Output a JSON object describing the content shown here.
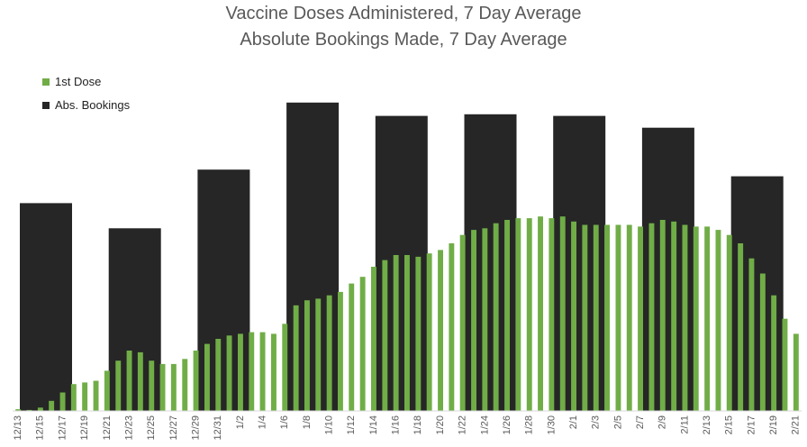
{
  "chart_data": {
    "type": "bar",
    "title": "Vaccine Doses Administered, 7 Day Average",
    "subtitle": "Absolute Bookings Made, 7 Day Average",
    "x_dates": [
      "12/13",
      "12/14",
      "12/15",
      "12/16",
      "12/17",
      "12/18",
      "12/19",
      "12/20",
      "12/21",
      "12/22",
      "12/23",
      "12/24",
      "12/25",
      "12/26",
      "12/27",
      "12/28",
      "12/29",
      "12/30",
      "12/31",
      "1/1",
      "1/2",
      "1/3",
      "1/4",
      "1/5",
      "1/6",
      "1/7",
      "1/8",
      "1/9",
      "1/10",
      "1/11",
      "1/12",
      "1/13",
      "1/14",
      "1/15",
      "1/16",
      "1/17",
      "1/18",
      "1/19",
      "1/20",
      "1/21",
      "1/22",
      "1/23",
      "1/24",
      "1/25",
      "1/26",
      "1/27",
      "1/28",
      "1/29",
      "1/30",
      "1/31",
      "2/1",
      "2/2",
      "2/3",
      "2/4",
      "2/5",
      "2/6",
      "2/7",
      "2/8",
      "2/9",
      "2/10",
      "2/11",
      "2/12",
      "2/13",
      "2/14",
      "2/15",
      "2/16",
      "2/17",
      "2/18",
      "2/19",
      "2/20",
      "2/21"
    ],
    "tick_labels": [
      "12/13",
      "12/15",
      "12/17",
      "12/19",
      "12/21",
      "12/23",
      "12/25",
      "12/27",
      "12/29",
      "12/31",
      "1/2",
      "1/4",
      "1/6",
      "1/8",
      "1/10",
      "1/12",
      "1/14",
      "1/16",
      "1/18",
      "1/20",
      "1/22",
      "1/24",
      "1/26",
      "1/28",
      "1/30",
      "2/1",
      "2/3",
      "2/5",
      "2/7",
      "2/9",
      "2/11",
      "2/13",
      "2/15",
      "2/17",
      "2/19",
      "2/21"
    ],
    "series": [
      {
        "name": "1st Dose",
        "color": "#70ad47",
        "values": [
          0.5,
          0.3,
          1.0,
          3.0,
          5.5,
          8.0,
          8.5,
          9.0,
          12.0,
          15.0,
          18.0,
          17.5,
          15.0,
          14.0,
          14.0,
          15.5,
          18.0,
          20.0,
          21.5,
          22.5,
          23.0,
          23.5,
          23.5,
          23.0,
          26.0,
          31.5,
          33.0,
          33.5,
          34.5,
          35.5,
          38.0,
          40.0,
          43.0,
          45.0,
          46.5,
          46.5,
          46.0,
          47.0,
          48.0,
          50.0,
          52.5,
          54.0,
          54.5,
          56.0,
          57.0,
          57.5,
          57.5,
          58.0,
          57.5,
          58.0,
          56.5,
          55.5,
          55.5,
          55.5,
          55.5,
          55.5,
          55.0,
          56.0,
          57.0,
          56.5,
          55.5,
          55.0,
          55.0,
          54.0,
          52.5,
          50.0,
          45.5,
          41.0,
          34.5,
          27.5,
          23.0
        ]
      },
      {
        "name": "Abs. Bookings",
        "color": "#262626",
        "values": [
          null,
          62.0,
          null,
          null,
          null,
          null,
          null,
          null,
          null,
          54.5,
          null,
          null,
          null,
          null,
          null,
          null,
          null,
          72.0,
          null,
          null,
          null,
          null,
          null,
          null,
          null,
          92.0,
          null,
          null,
          null,
          null,
          null,
          null,
          null,
          88.0,
          null,
          null,
          null,
          null,
          null,
          null,
          null,
          88.5,
          null,
          null,
          null,
          null,
          null,
          null,
          null,
          88.0,
          null,
          null,
          null,
          null,
          null,
          null,
          null,
          84.5,
          null,
          null,
          null,
          null,
          null,
          null,
          null,
          70.0,
          null,
          null,
          null,
          null,
          null
        ],
        "bar_span_days": 5
      }
    ],
    "ylim": [
      0,
      100
    ],
    "xlabel": "",
    "ylabel": "",
    "grid": false,
    "legend": "top-left"
  }
}
